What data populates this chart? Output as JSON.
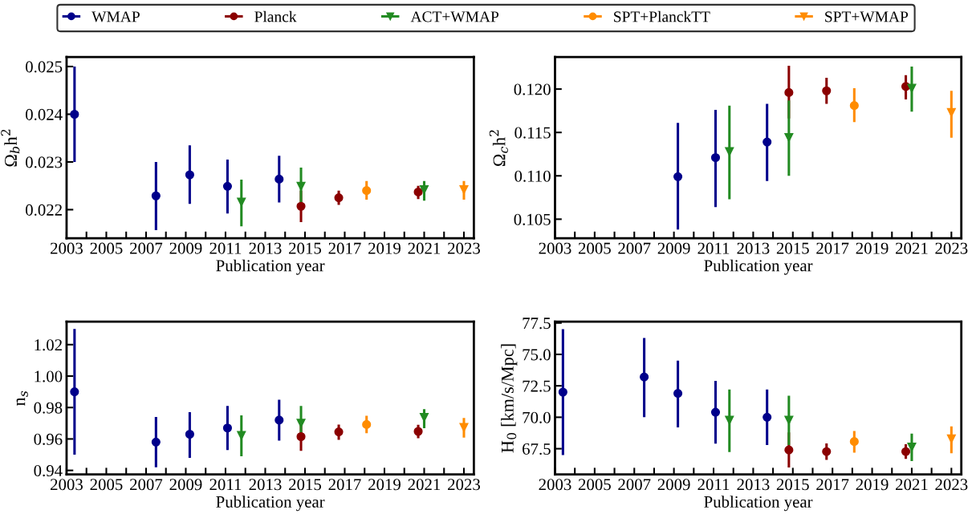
{
  "chart_data": [
    {
      "type": "scatter",
      "ylabel": "Ω$_{b}$h$^{2}$",
      "xlabel": "Publication year",
      "legend": "top",
      "grid": false,
      "xlim": [
        2003,
        2023.5
      ],
      "xticks": [
        2003,
        {
          "value": 2004,
          "label": null
        },
        2005,
        {
          "value": 2006,
          "label": null
        },
        2007,
        {
          "value": 2008,
          "label": null
        },
        2009,
        {
          "value": 2010,
          "label": null
        },
        2011,
        {
          "value": 2012,
          "label": null
        },
        2013,
        {
          "value": 2014,
          "label": null
        },
        2015,
        {
          "value": 2016,
          "label": null
        },
        2017,
        {
          "value": 2018,
          "label": null
        },
        2019,
        {
          "value": 2020,
          "label": null
        },
        2021,
        {
          "value": 2022,
          "label": null
        },
        2023
      ],
      "ylim": [
        0.0214,
        0.0252
      ],
      "yticks": [
        0.022,
        0.023,
        0.024,
        0.025
      ],
      "series": [
        {
          "name": "WMAP",
          "color": "#00008b",
          "marker": "circle",
          "x": [
            2003.4,
            2007.5,
            2009.2,
            2011.1,
            2013.7
          ],
          "values": [
            0.024,
            0.02229,
            0.02273,
            0.02249,
            0.02264
          ],
          "errors": [
            [
              0.023,
              0.025
            ],
            [
              0.02157,
              0.023
            ],
            [
              0.02212,
              0.02335
            ],
            [
              0.02192,
              0.02305
            ],
            [
              0.02215,
              0.02313
            ]
          ]
        },
        {
          "name": "Planck",
          "color": "#8b0000",
          "marker": "circle",
          "x": [
            2014.8,
            2016.7,
            2020.7
          ],
          "values": [
            0.02207,
            0.02225,
            0.02237
          ],
          "errors": [
            [
              0.02174,
              0.0224
            ],
            [
              0.0221,
              0.0224
            ],
            [
              0.02222,
              0.0225
            ]
          ]
        },
        {
          "name": "ACT+WMAP",
          "color": "#228b22",
          "marker": "triangle",
          "x": [
            2011.8,
            2014.8,
            2021.0
          ],
          "values": [
            0.02216,
            0.02249,
            0.02242
          ],
          "errors": [
            [
              0.02165,
              0.02263
            ],
            [
              0.0221,
              0.02288
            ],
            [
              0.02219,
              0.0226
            ]
          ]
        },
        {
          "name": "SPT+PlanckTT",
          "color": "#ff8c00",
          "marker": "circle",
          "x": [
            2018.1
          ],
          "values": [
            0.0224
          ],
          "errors": [
            [
              0.02221,
              0.0226
            ]
          ]
        },
        {
          "name": "SPT+WMAP",
          "color": "#ff8c00",
          "marker": "triangle",
          "x": [
            2023.0
          ],
          "values": [
            0.02242
          ],
          "errors": [
            [
              0.02221,
              0.0226
            ]
          ]
        }
      ]
    },
    {
      "type": "scatter",
      "ylabel": "Ω$_{c}$h$^{2}$",
      "xlabel": "Publication year",
      "grid": false,
      "xlim": [
        2003,
        2023.5
      ],
      "xticks": [
        2003,
        {
          "value": 2004,
          "label": null
        },
        2005,
        {
          "value": 2006,
          "label": null
        },
        2007,
        {
          "value": 2008,
          "label": null
        },
        2009,
        {
          "value": 2010,
          "label": null
        },
        2011,
        {
          "value": 2012,
          "label": null
        },
        2013,
        {
          "value": 2014,
          "label": null
        },
        2015,
        {
          "value": 2016,
          "label": null
        },
        2017,
        {
          "value": 2018,
          "label": null
        },
        2019,
        {
          "value": 2020,
          "label": null
        },
        2021,
        {
          "value": 2022,
          "label": null
        },
        2023
      ],
      "ylim": [
        0.1028,
        0.1237
      ],
      "yticks": [
        {
          "value": 0.105,
          "label": "0.105"
        },
        {
          "value": 0.11,
          "label": "0.110"
        },
        {
          "value": 0.115,
          "label": "0.115"
        },
        {
          "value": 0.12,
          "label": "0.120"
        }
      ],
      "series": [
        {
          "name": "WMAP",
          "color": "#00008b",
          "marker": "circle",
          "x": [
            2009.2,
            2011.1,
            2013.7
          ],
          "values": [
            0.1099,
            0.1121,
            0.1139
          ],
          "errors": [
            [
              0.1038,
              0.1161
            ],
            [
              0.1064,
              0.1176
            ],
            [
              0.1094,
              0.1183
            ]
          ]
        },
        {
          "name": "Planck",
          "color": "#8b0000",
          "marker": "circle",
          "x": [
            2014.8,
            2016.7,
            2020.7
          ],
          "values": [
            0.1196,
            0.1198,
            0.1203
          ],
          "errors": [
            [
              0.1166,
              0.1227
            ],
            [
              0.1183,
              0.1213
            ],
            [
              0.1188,
              0.1216
            ]
          ]
        },
        {
          "name": "ACT+WMAP",
          "color": "#228b22",
          "marker": "triangle",
          "x": [
            2011.8,
            2014.8,
            2021.0
          ],
          "values": [
            0.1128,
            0.1144,
            0.1201
          ],
          "errors": [
            [
              0.1073,
              0.1181
            ],
            [
              0.11,
              0.1187
            ],
            [
              0.1174,
              0.1226
            ]
          ]
        },
        {
          "name": "SPT+PlanckTT",
          "color": "#ff8c00",
          "marker": "circle",
          "x": [
            2018.1
          ],
          "values": [
            0.1181
          ],
          "errors": [
            [
              0.1162,
              0.1201
            ]
          ]
        },
        {
          "name": "SPT+WMAP",
          "color": "#ff8c00",
          "marker": "triangle",
          "x": [
            2023.0
          ],
          "values": [
            0.1173
          ],
          "errors": [
            [
              0.1144,
              0.1198
            ]
          ]
        }
      ]
    },
    {
      "type": "scatter",
      "ylabel": "n$_{s}$",
      "xlabel": "Publication year",
      "grid": false,
      "xlim": [
        2003,
        2023.5
      ],
      "xticks": [
        2003,
        {
          "value": 2004,
          "label": null
        },
        2005,
        {
          "value": 2006,
          "label": null
        },
        2007,
        {
          "value": 2008,
          "label": null
        },
        2009,
        {
          "value": 2010,
          "label": null
        },
        2011,
        {
          "value": 2012,
          "label": null
        },
        2013,
        {
          "value": 2014,
          "label": null
        },
        2015,
        {
          "value": 2016,
          "label": null
        },
        2017,
        {
          "value": 2018,
          "label": null
        },
        2019,
        {
          "value": 2020,
          "label": null
        },
        2021,
        {
          "value": 2022,
          "label": null
        },
        2023
      ],
      "ylim": [
        0.9374,
        1.0346
      ],
      "yticks": [
        0.94,
        0.96,
        0.98,
        {
          "value": 1.0,
          "label": "1.00"
        },
        1.02
      ],
      "series": [
        {
          "name": "WMAP",
          "color": "#00008b",
          "marker": "circle",
          "x": [
            2003.4,
            2007.5,
            2009.2,
            2011.1,
            2013.7
          ],
          "values": [
            0.99,
            0.958,
            0.963,
            0.967,
            0.972
          ],
          "errors": [
            [
              0.95,
              1.03
            ],
            [
              0.942,
              0.974
            ],
            [
              0.948,
              0.977
            ],
            [
              0.953,
              0.981
            ],
            [
              0.959,
              0.985
            ]
          ]
        },
        {
          "name": "Planck",
          "color": "#8b0000",
          "marker": "circle",
          "x": [
            2014.8,
            2016.7,
            2020.7
          ],
          "values": [
            0.9615,
            0.9645,
            0.9648
          ],
          "errors": [
            [
              0.9525,
              0.969
            ],
            [
              0.9595,
              0.9692
            ],
            [
              0.9605,
              0.969
            ]
          ]
        },
        {
          "name": "ACT+WMAP",
          "color": "#228b22",
          "marker": "triangle",
          "x": [
            2011.8,
            2014.8,
            2021.0
          ],
          "values": [
            0.9622,
            0.97,
            0.9737
          ],
          "errors": [
            [
              0.949,
              0.975
            ],
            [
              0.96,
              0.981
            ],
            [
              0.9668,
              0.979
            ]
          ]
        },
        {
          "name": "SPT+PlanckTT",
          "color": "#ff8c00",
          "marker": "circle",
          "x": [
            2018.1
          ],
          "values": [
            0.9692
          ],
          "errors": [
            [
              0.9636,
              0.9748
            ]
          ]
        },
        {
          "name": "SPT+WMAP",
          "color": "#ff8c00",
          "marker": "triangle",
          "x": [
            2023.0
          ],
          "values": [
            0.9673
          ],
          "errors": [
            [
              0.9608,
              0.9733
            ]
          ]
        }
      ]
    },
    {
      "type": "scatter",
      "ylabel": "H$_{0}$ [km/s/Mpc]",
      "xlabel": "Publication year",
      "grid": false,
      "xlim": [
        2003,
        2023.5
      ],
      "xticks": [
        2003,
        {
          "value": 2004,
          "label": null
        },
        2005,
        {
          "value": 2006,
          "label": null
        },
        2007,
        {
          "value": 2008,
          "label": null
        },
        2009,
        {
          "value": 2010,
          "label": null
        },
        2011,
        {
          "value": 2012,
          "label": null
        },
        2013,
        {
          "value": 2014,
          "label": null
        },
        2015,
        {
          "value": 2016,
          "label": null
        },
        2017,
        {
          "value": 2018,
          "label": null
        },
        2019,
        {
          "value": 2020,
          "label": null
        },
        2021,
        {
          "value": 2022,
          "label": null
        },
        2023
      ],
      "ylim": [
        65.45,
        77.6
      ],
      "yticks": [
        67.5,
        {
          "value": 70,
          "label": "70.0"
        },
        72.5,
        {
          "value": 75,
          "label": "75.0"
        },
        77.5
      ],
      "series": [
        {
          "name": "WMAP",
          "color": "#00008b",
          "marker": "circle",
          "x": [
            2003.4,
            2007.5,
            2009.2,
            2011.1,
            2013.7
          ],
          "values": [
            72.0,
            73.2,
            71.9,
            70.4,
            70.0
          ],
          "errors": [
            [
              67.0,
              77.0
            ],
            [
              70.0,
              76.3
            ],
            [
              69.2,
              74.5
            ],
            [
              67.9,
              72.9
            ],
            [
              67.8,
              72.2
            ]
          ]
        },
        {
          "name": "Planck",
          "color": "#8b0000",
          "marker": "circle",
          "x": [
            2014.8,
            2016.7,
            2020.7
          ],
          "values": [
            67.4,
            67.27,
            67.27
          ],
          "errors": [
            [
              66.0,
              68.8
            ],
            [
              66.62,
              67.92
            ],
            [
              66.7,
              67.86
            ]
          ]
        },
        {
          "name": "ACT+WMAP",
          "color": "#228b22",
          "marker": "triangle",
          "x": [
            2011.8,
            2014.8,
            2021.0
          ],
          "values": [
            69.76,
            69.76,
            67.63
          ],
          "errors": [
            [
              67.23,
              72.2
            ],
            [
              67.8,
              71.71
            ],
            [
              66.52,
              68.7
            ]
          ]
        },
        {
          "name": "SPT+PlanckTT",
          "color": "#ff8c00",
          "marker": "circle",
          "x": [
            2018.1
          ],
          "values": [
            68.07
          ],
          "errors": [
            [
              67.18,
              68.9
            ]
          ]
        },
        {
          "name": "SPT+WMAP",
          "color": "#ff8c00",
          "marker": "triangle",
          "x": [
            2023.0
          ],
          "values": [
            68.28
          ],
          "errors": [
            [
              67.14,
              69.28
            ]
          ]
        }
      ]
    }
  ]
}
